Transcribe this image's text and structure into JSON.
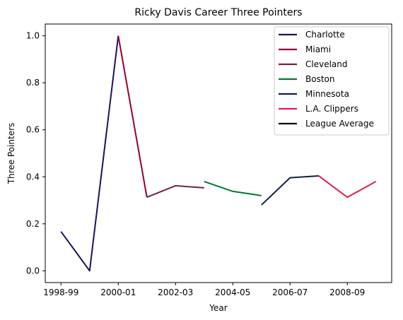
{
  "chart_data": {
    "type": "line",
    "title": "Ricky Davis Career Three Pointers",
    "xlabel": "Year",
    "ylabel": "Three Pointers",
    "x_categories": [
      "1998-99",
      "1999-00",
      "2000-01",
      "2001-02",
      "2002-03",
      "2003-04",
      "2004-05",
      "2005-06",
      "2006-07",
      "2007-08",
      "2008-09",
      "2009-10"
    ],
    "x_tick_labels": [
      "1998-99",
      "2000-01",
      "2002-03",
      "2004-05",
      "2006-07",
      "2008-09"
    ],
    "ylim": [
      -0.05,
      1.05
    ],
    "y_ticks": [
      "0.0",
      "0.2",
      "0.4",
      "0.6",
      "0.8",
      "1.0"
    ],
    "grid": false,
    "legend_position": "top-right",
    "series": [
      {
        "name": "Charlotte",
        "color": "#1D1160",
        "points": [
          [
            0,
            0.167
          ],
          [
            1,
            0.0
          ],
          [
            2,
            1.0
          ]
        ]
      },
      {
        "name": "Miami",
        "color": "#98002E",
        "points": [
          [
            2,
            1.0
          ],
          [
            3,
            0.313
          ]
        ]
      },
      {
        "name": "Cleveland",
        "color": "#6F263D",
        "points": [
          [
            3,
            0.313
          ],
          [
            4,
            0.362
          ],
          [
            5,
            0.353
          ]
        ]
      },
      {
        "name": "Boston",
        "color": "#007A33",
        "points": [
          [
            5,
            0.38
          ],
          [
            6,
            0.338
          ],
          [
            7,
            0.32
          ]
        ]
      },
      {
        "name": "Minnesota",
        "color": "#0C2340",
        "points": [
          [
            7,
            0.28
          ],
          [
            8,
            0.396
          ],
          [
            9,
            0.404
          ]
        ]
      },
      {
        "name": "L.A. Clippers",
        "color": "#E01E4D",
        "points": [
          [
            9,
            0.404
          ],
          [
            10,
            0.313
          ],
          [
            11,
            0.38
          ]
        ]
      },
      {
        "name": "League Average",
        "color": "#000000",
        "points": []
      }
    ]
  }
}
